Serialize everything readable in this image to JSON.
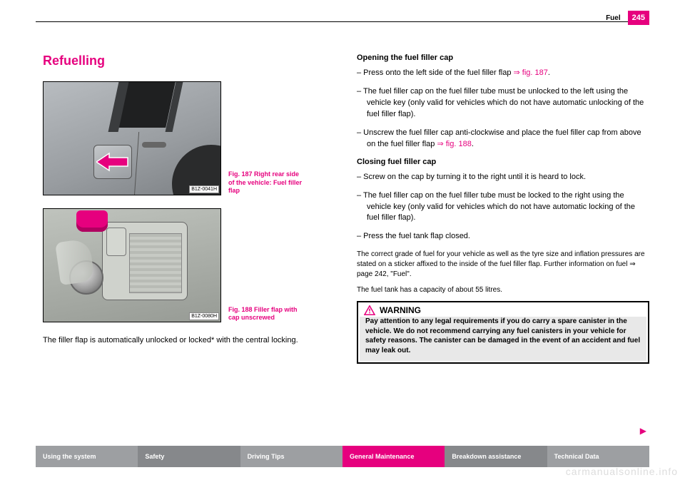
{
  "header": {
    "section": "Fuel",
    "page_number": "245"
  },
  "left": {
    "title": "Refuelling",
    "fig187": {
      "id": "B1Z-0041H",
      "caption": "Fig. 187  Right rear side of the vehicle: Fuel filler flap"
    },
    "fig188": {
      "id": "B1Z-0080H",
      "caption": "Fig. 188  Filler flap with cap unscrewed"
    },
    "para": "The filler flap is automatically unlocked or locked* with the central locking."
  },
  "right": {
    "open_head": "Opening the fuel filler cap",
    "open_s1a": "–   Press onto the left side of the fuel filler flap ",
    "open_s1b": "⇒ fig. 187",
    "open_s1c": ".",
    "open_s2": "–   The fuel filler cap on the fuel filler tube must be unlocked to the left using the vehicle key (only valid for vehicles which do not have automatic unlocking of the fuel filler flap).",
    "open_s3a": "–   Unscrew the fuel filler cap anti-clockwise and place the fuel filler cap from above on the fuel filler flap ",
    "open_s3b": "⇒ fig. 188",
    "open_s3c": ".",
    "close_head": "Closing fuel filler cap",
    "close_s1": "–   Screw on the cap by turning it to the right until it is heard to lock.",
    "close_s2": "–   The fuel filler cap on the fuel filler tube must be locked to the right using the vehicle key (only valid for vehicles which do not have automatic locking of the fuel filler flap).",
    "close_s3": "–   Press the fuel tank flap closed.",
    "note1": "The correct grade of fuel for your vehicle as well as the tyre size and inflation pressures are stated on a sticker affixed to the inside of the fuel filler flap. Further information on fuel ⇒ page 242, \"Fuel\".",
    "note2": "The fuel tank has a capacity of about 55 litres.",
    "warn_title": "WARNING",
    "warn_body": "Pay attention to any legal requirements if you do carry a spare canister in the vehicle. We do not recommend carrying any fuel canisters in your vehicle for safety reasons. The canister can be damaged in the event of an accident and fuel may leak out."
  },
  "bottombar": {
    "items": [
      "Using the system",
      "Safety",
      "Driving Tips",
      "General Maintenance",
      "Breakdown assistance",
      "Technical Data"
    ],
    "colors": [
      "#9d9fa2",
      "#86888b",
      "#9d9fa2",
      "#e6007e",
      "#86888b",
      "#9d9fa2"
    ]
  },
  "watermark": "carmanualsonline.info",
  "colors": {
    "accent": "#e6007e"
  }
}
